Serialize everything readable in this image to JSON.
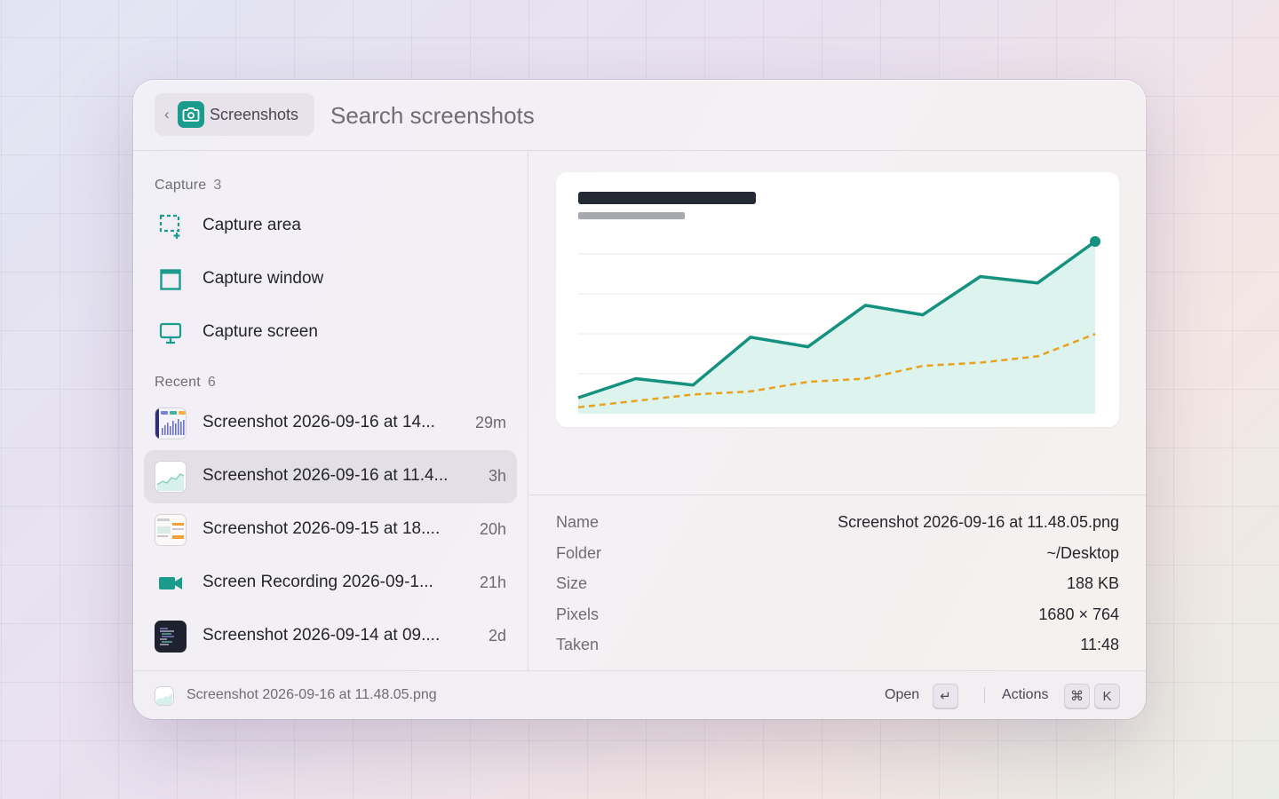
{
  "header": {
    "extension_name": "Screenshots",
    "search_placeholder": "Search screenshots"
  },
  "sections": {
    "capture": {
      "title": "Capture",
      "count": "3",
      "items": [
        {
          "label": "Capture area",
          "icon": "capture-area-icon"
        },
        {
          "label": "Capture window",
          "icon": "capture-window-icon"
        },
        {
          "label": "Capture screen",
          "icon": "capture-screen-icon"
        }
      ]
    },
    "recent": {
      "title": "Recent",
      "count": "6",
      "items": [
        {
          "label": "Screenshot 2026-09-16 at 14...",
          "age": "29m",
          "icon": "bar-chart-thumbnail"
        },
        {
          "label": "Screenshot 2026-09-16 at 11.4...",
          "age": "3h",
          "icon": "area-chart-thumbnail",
          "selected": true
        },
        {
          "label": "Screenshot 2026-09-15 at 18....",
          "age": "20h",
          "icon": "dashboard-thumbnail"
        },
        {
          "label": "Screen Recording 2026-09-1...",
          "age": "21h",
          "icon": "video-camera-icon"
        },
        {
          "label": "Screenshot 2026-09-14 at 09....",
          "age": "2d",
          "icon": "code-editor-thumbnail"
        }
      ]
    }
  },
  "detail": {
    "preview_chart": {
      "type": "area",
      "series": [
        {
          "values": [
            0,
            6,
            4,
            19,
            16,
            29,
            26,
            38,
            36,
            49
          ],
          "color": "#15917f",
          "style": "solid-area"
        },
        {
          "values": [
            -3,
            -1,
            1,
            2,
            5,
            6,
            10,
            11,
            13,
            20
          ],
          "color": "#e9a21c",
          "style": "dashed"
        }
      ],
      "ylim": [
        -5,
        49
      ],
      "gridlines": 4,
      "title_placeholder_color": "#232a35",
      "subtitle_placeholder_color": "#a7a9b0"
    },
    "metadata": [
      {
        "key": "Name",
        "value": "Screenshot 2026-09-16 at 11.48.05.png"
      },
      {
        "key": "Folder",
        "value": "~/Desktop"
      },
      {
        "key": "Size",
        "value": "188 KB"
      },
      {
        "key": "Pixels",
        "value": "1680 × 764"
      },
      {
        "key": "Taken",
        "value": "11:48"
      }
    ]
  },
  "footer": {
    "selected_file": "Screenshot 2026-09-16 at 11.48.05.png",
    "primary_action": "Open",
    "primary_key": "↵",
    "actions_label": "Actions",
    "actions_keys": [
      "⌘",
      "K"
    ]
  },
  "colors": {
    "accent": "#1a9b8c",
    "accent_line": "#15917f",
    "secondary_line": "#e9a21c",
    "selection": "#e3dfe6"
  }
}
